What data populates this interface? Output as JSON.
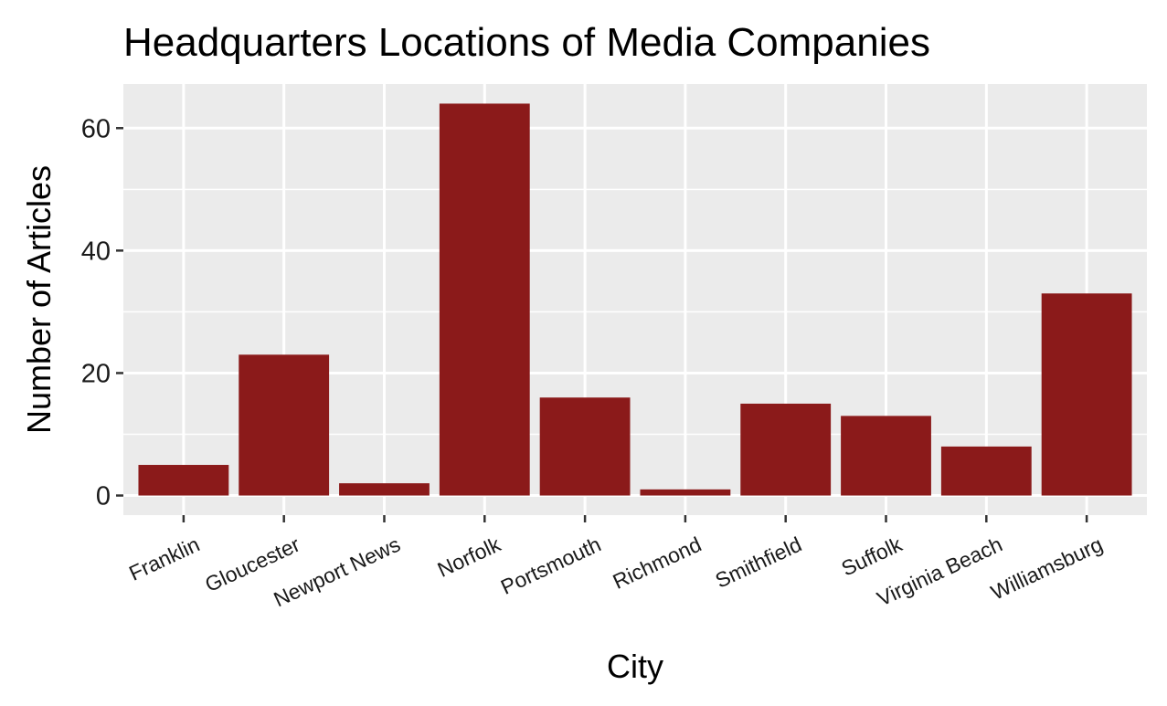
{
  "chart_data": {
    "type": "bar",
    "title": "Headquarters Locations of Media Companies",
    "xlabel": "City",
    "ylabel": "Number of Articles",
    "categories": [
      "Franklin",
      "Gloucester",
      "Newport News",
      "Norfolk",
      "Portsmouth",
      "Richmond",
      "Smithfield",
      "Suffolk",
      "Virginia Beach",
      "Williamsburg"
    ],
    "values": [
      5,
      23,
      2,
      64,
      16,
      1,
      15,
      13,
      8,
      33
    ],
    "yticks": [
      0,
      20,
      40,
      60
    ],
    "ylim": [
      -3.2,
      67.2
    ],
    "grid": true,
    "bar_color": "#8B1A1A",
    "panel_color": "#EBEBEB",
    "grid_color": "#FFFFFF"
  }
}
